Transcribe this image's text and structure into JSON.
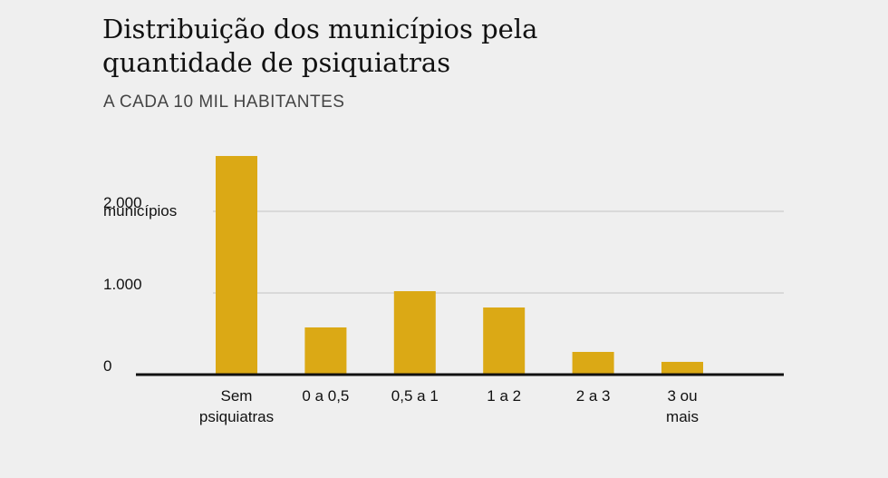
{
  "chart_data": {
    "type": "bar",
    "title": "Distribuição dos municípios pela quantidade de psiquiatras",
    "subtitle": "A CADA 10 MIL HABITANTES",
    "y_unit": "municípios",
    "categories": [
      "Sem psiquiatras",
      "0 a 0,5",
      "0,5 a 1",
      "1 a 2",
      "2 a 3",
      "3 ou mais"
    ],
    "values": [
      2678,
      578,
      1022,
      822,
      278,
      156
    ],
    "color": "#dba915",
    "ylim": [
      0,
      2800
    ],
    "yticks": [
      0,
      {
        "value": 1000,
        "label": "1.000"
      },
      {
        "value": 2000,
        "label": "2.000"
      }
    ],
    "grid": true
  }
}
